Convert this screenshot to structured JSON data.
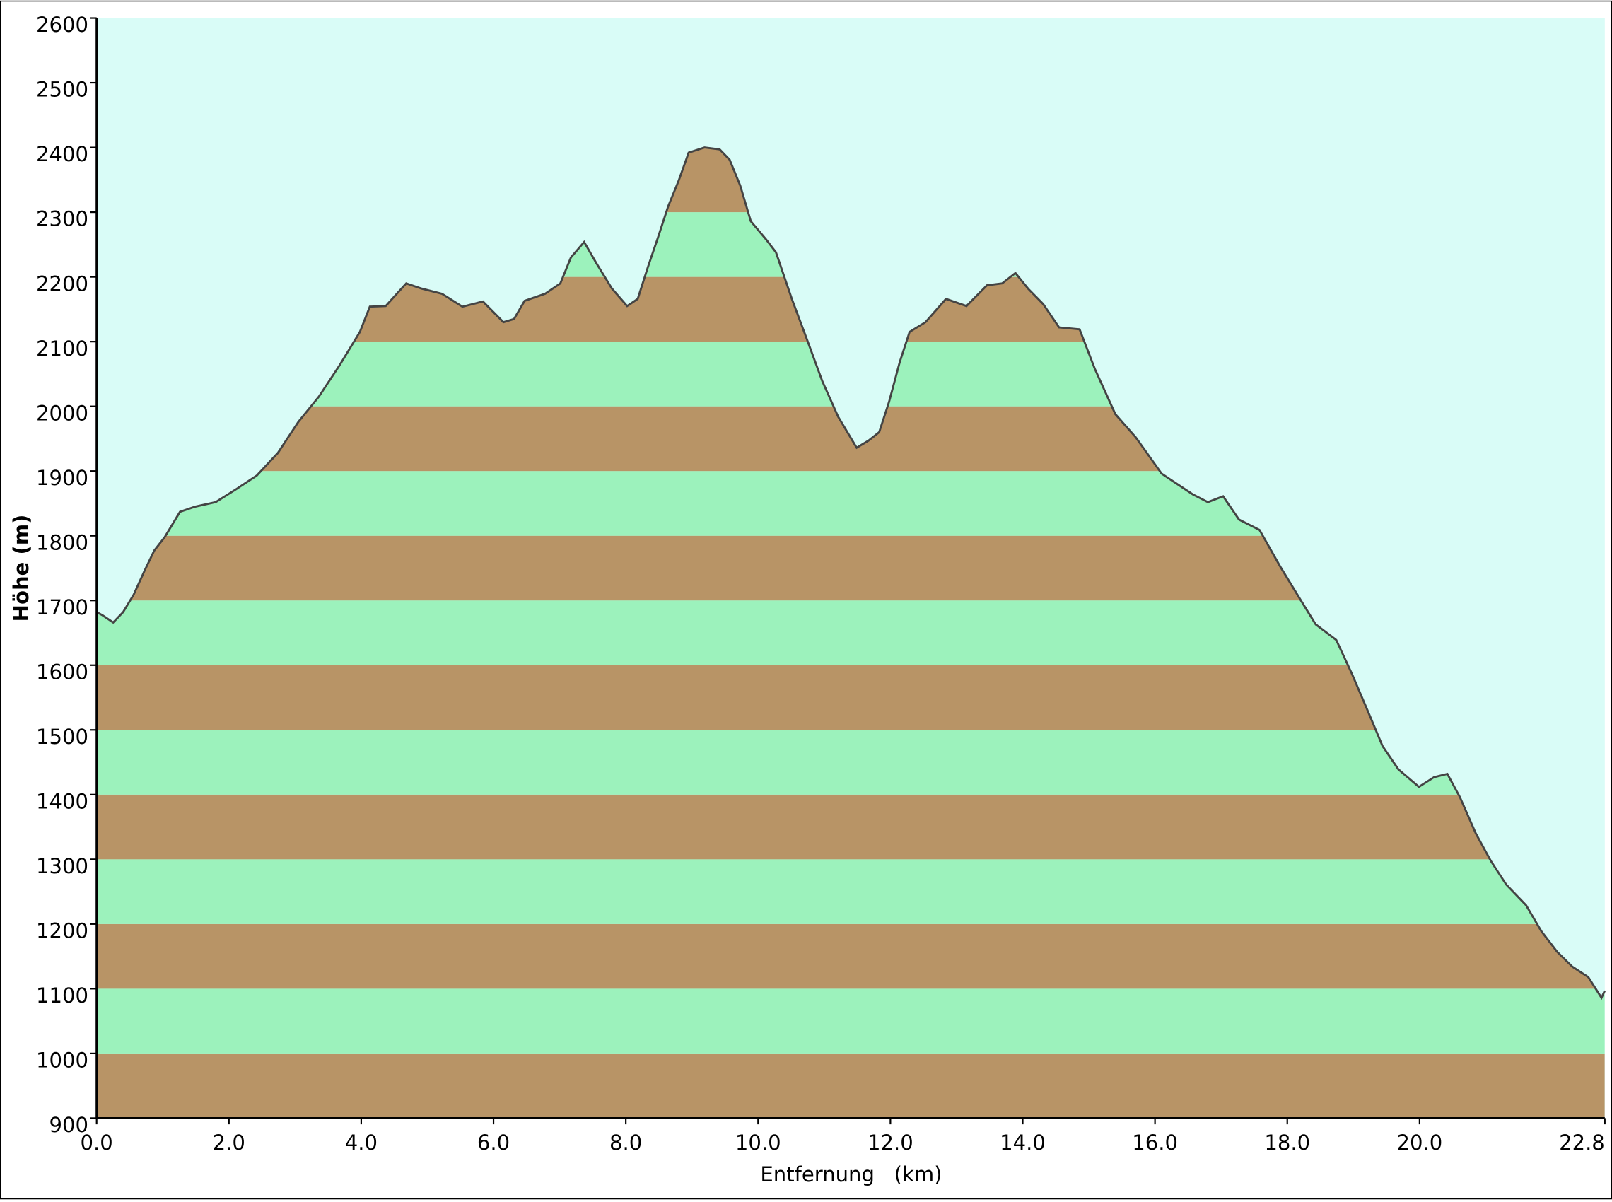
{
  "chart_data": {
    "type": "area",
    "x_label": "Entfernung   (km)",
    "y_label": "Höhe (m)",
    "xlim": [
      0,
      22.8
    ],
    "ylim": [
      900,
      2600
    ],
    "xticks": [
      {
        "value": 0,
        "label": "0.0"
      },
      {
        "value": 2,
        "label": "2.0"
      },
      {
        "value": 4,
        "label": "4.0"
      },
      {
        "value": 6,
        "label": "6.0"
      },
      {
        "value": 8,
        "label": "8.0"
      },
      {
        "value": 10,
        "label": "10.0"
      },
      {
        "value": 12,
        "label": "12.0"
      },
      {
        "value": 14,
        "label": "14.0"
      },
      {
        "value": 16,
        "label": "16.0"
      },
      {
        "value": 18,
        "label": "18.0"
      },
      {
        "value": 20,
        "label": "20.0"
      },
      {
        "value": 22.8,
        "label": "22.8"
      }
    ],
    "yticks": [
      900,
      1000,
      1100,
      1200,
      1300,
      1400,
      1500,
      1600,
      1700,
      1800,
      1900,
      2000,
      2100,
      2200,
      2300,
      2400,
      2500,
      2600
    ],
    "band_colors": [
      "#b89466",
      "#9cf2bc"
    ],
    "background": "#d9fcf7",
    "line_color": "#444444",
    "x": [
      0,
      0.09,
      0.25,
      0.4,
      0.56,
      0.72,
      0.87,
      1.03,
      1.26,
      1.49,
      1.8,
      2.11,
      2.42,
      2.74,
      3.05,
      3.36,
      3.67,
      3.98,
      4.13,
      4.37,
      4.68,
      4.91,
      5.22,
      5.53,
      5.84,
      6.15,
      6.31,
      6.47,
      6.78,
      7.01,
      7.17,
      7.37,
      7.55,
      7.79,
      8.02,
      8.18,
      8.33,
      8.49,
      8.64,
      8.8,
      8.95,
      9.19,
      9.42,
      9.57,
      9.73,
      9.89,
      10.12,
      10.27,
      10.51,
      10.74,
      10.97,
      11.21,
      11.49,
      11.67,
      11.83,
      11.98,
      12.14,
      12.29,
      12.53,
      12.84,
      13.15,
      13.46,
      13.69,
      13.89,
      14.08,
      14.31,
      14.55,
      14.86,
      15.09,
      15.4,
      15.71,
      16.1,
      16.57,
      16.8,
      17.03,
      17.27,
      17.58,
      17.89,
      18.2,
      18.43,
      18.74,
      18.98,
      19.21,
      19.44,
      19.68,
      19.99,
      20.22,
      20.42,
      20.61,
      20.85,
      21.08,
      21.31,
      21.61,
      21.84,
      22.08,
      22.31,
      22.55,
      22.75,
      22.8
    ],
    "values": [
      1682,
      1677,
      1666,
      1682,
      1709,
      1745,
      1777,
      1798,
      1837,
      1845,
      1852,
      1872,
      1893,
      1928,
      1976,
      2015,
      2063,
      2115,
      2154,
      2155,
      2190,
      2182,
      2174,
      2154,
      2162,
      2130,
      2135,
      2163,
      2174,
      2190,
      2230,
      2254,
      2222,
      2182,
      2155,
      2166,
      2214,
      2262,
      2309,
      2349,
      2392,
      2400,
      2397,
      2381,
      2341,
      2286,
      2258,
      2238,
      2166,
      2103,
      2039,
      1984,
      1936,
      1947,
      1960,
      2007,
      2068,
      2115,
      2130,
      2166,
      2155,
      2187,
      2190,
      2206,
      2182,
      2158,
      2122,
      2119,
      2058,
      1988,
      1952,
      1896,
      1864,
      1852,
      1861,
      1825,
      1809,
      1753,
      1701,
      1663,
      1639,
      1586,
      1531,
      1475,
      1439,
      1412,
      1427,
      1432,
      1396,
      1340,
      1297,
      1261,
      1229,
      1189,
      1157,
      1134,
      1118,
      1086,
      1097
    ]
  }
}
